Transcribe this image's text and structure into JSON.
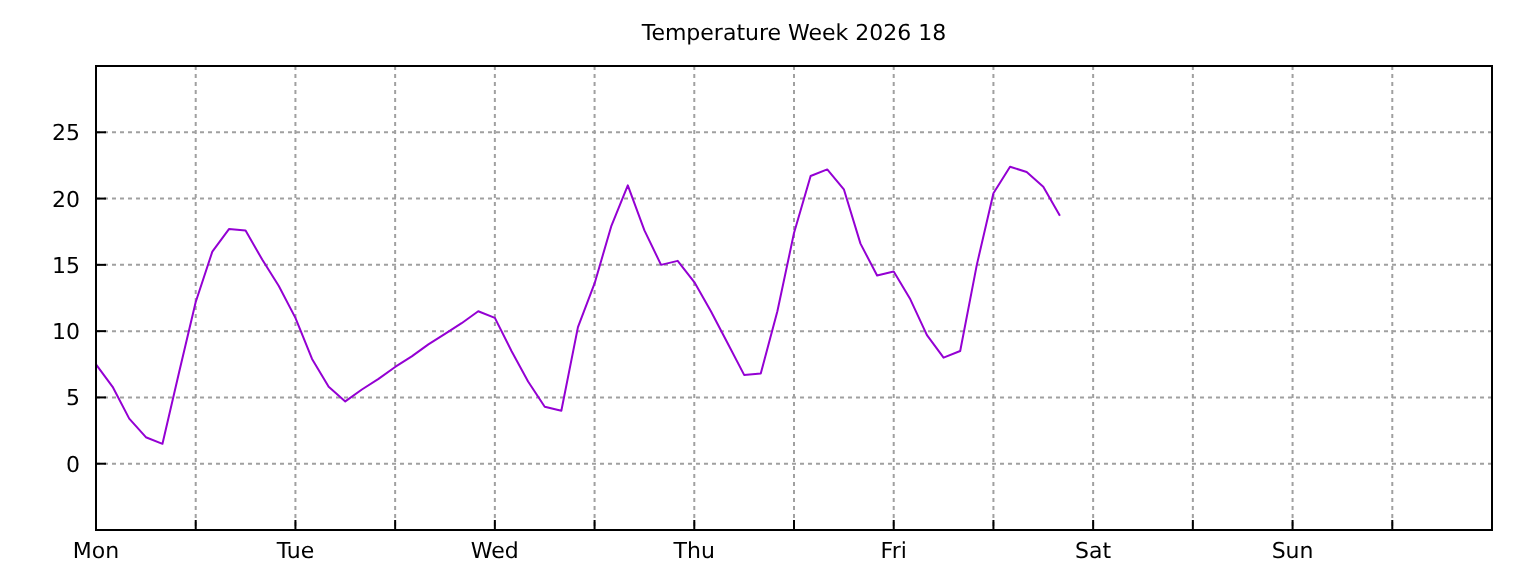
{
  "chart_data": {
    "type": "line",
    "title": "Temperature Week 2026 18",
    "categories": [
      "Mon",
      null,
      null,
      null,
      null,
      null,
      null,
      null,
      null,
      null,
      null,
      null,
      "Tue",
      null,
      null,
      null,
      null,
      null,
      null,
      null,
      null,
      null,
      null,
      null,
      "Wed",
      null,
      null,
      null,
      null,
      null,
      null,
      null,
      null,
      null,
      null,
      null,
      "Thu",
      null,
      null,
      null,
      null,
      null,
      null,
      null,
      null,
      null,
      null,
      null,
      "Fri",
      null,
      null,
      null,
      null,
      null,
      null,
      null,
      null,
      null,
      null,
      null,
      "Sat",
      null,
      null,
      null,
      null,
      null,
      null,
      null,
      null,
      null,
      null,
      null,
      "Sun",
      null,
      null,
      null,
      null,
      null,
      null,
      null,
      null,
      null,
      null,
      null,
      null
    ],
    "series": [
      {
        "color": "#9400d3",
        "values": [
          7.5,
          5.8,
          3.4,
          2.0,
          1.5,
          6.9,
          12.2,
          16.0,
          17.7,
          17.6,
          15.4,
          13.4,
          11.0,
          7.9,
          5.8,
          4.7,
          5.6,
          6.4,
          7.3,
          8.1,
          9.0,
          9.8,
          10.6,
          11.5,
          11.0,
          8.5,
          6.2,
          4.3,
          4.0,
          10.3,
          13.6,
          17.9,
          21.0,
          17.6,
          15.0,
          15.3,
          13.7,
          11.5,
          9.1,
          6.7,
          6.8,
          11.5,
          17.4,
          21.7,
          22.2,
          20.7,
          16.6,
          14.2,
          14.5,
          12.4,
          9.7,
          8.0,
          8.5,
          15.0,
          20.4,
          22.4,
          22.0,
          20.9,
          18.7,
          null,
          null,
          null,
          null,
          null,
          null,
          null,
          null,
          null,
          null,
          null,
          null,
          null,
          null,
          null,
          null,
          null,
          null,
          null,
          null,
          null,
          null,
          null,
          null,
          null,
          null
        ]
      }
    ],
    "ylim": [
      -5,
      30
    ],
    "yticks": [
      0,
      5,
      10,
      15,
      20,
      25
    ],
    "grid": true
  }
}
